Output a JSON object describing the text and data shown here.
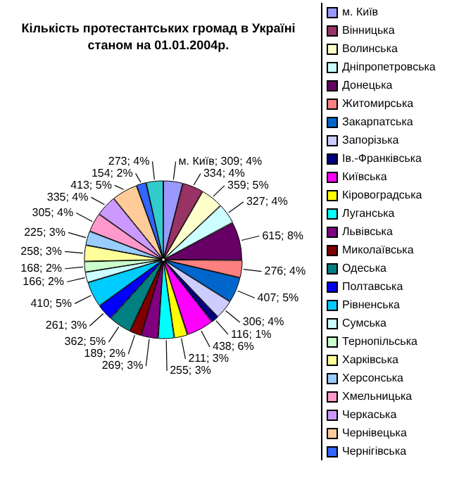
{
  "chart_data": {
    "type": "pie",
    "title": "Кількість протестантських громад в Україні станом на 01.01.2004р.",
    "categories": [
      "м. Київ",
      "Вінницька",
      "Волинська",
      "Дніпропетровська",
      "Донецька",
      "Житомирська",
      "Закарпатська",
      "Запорізька",
      "Ів.-Франківська",
      "Київська",
      "Кіровоградська",
      "Луганська",
      "Львівська",
      "Миколаївська",
      "Одеська",
      "Полтавська",
      "Рівненська",
      "Сумська",
      "Тернопільська",
      "Харківська",
      "Херсонська",
      "Хмельницька",
      "Черкаська",
      "Чернівецька",
      "Чернігівська",
      null
    ],
    "values": [
      309,
      334,
      359,
      327,
      615,
      276,
      407,
      306,
      116,
      438,
      211,
      255,
      269,
      189,
      362,
      261,
      410,
      166,
      168,
      258,
      225,
      305,
      335,
      413,
      154,
      273
    ],
    "value_labels": [
      "м. Київ; 309; 4%",
      "334; 4%",
      "359; 5%",
      "327; 4%",
      "615; 8%",
      "276; 4%",
      "407; 5%",
      "306; 4%",
      "116; 1%",
      "438; 6%",
      "211; 3%",
      "255; 3%",
      "269; 3%",
      "189; 2%",
      "362; 5%",
      "261; 3%",
      "410; 5%",
      "166; 2%",
      "168; 2%",
      "258; 3%",
      "225; 3%",
      "305; 4%",
      "335; 4%",
      "413; 5%",
      "154; 2%",
      "273; 4%"
    ],
    "colors": [
      "#9999ff",
      "#993366",
      "#ffffcc",
      "#ccffff",
      "#660066",
      "#ff8080",
      "#0066cc",
      "#ccccff",
      "#000080",
      "#ff00ff",
      "#ffff00",
      "#00ffff",
      "#800080",
      "#800000",
      "#008080",
      "#0000ff",
      "#00ccff",
      "#ccffff",
      "#ccffcc",
      "#ffff99",
      "#99ccff",
      "#ff99cc",
      "#cc99ff",
      "#ffcc99",
      "#3366ff",
      "#33cccc"
    ],
    "legend": "right"
  }
}
